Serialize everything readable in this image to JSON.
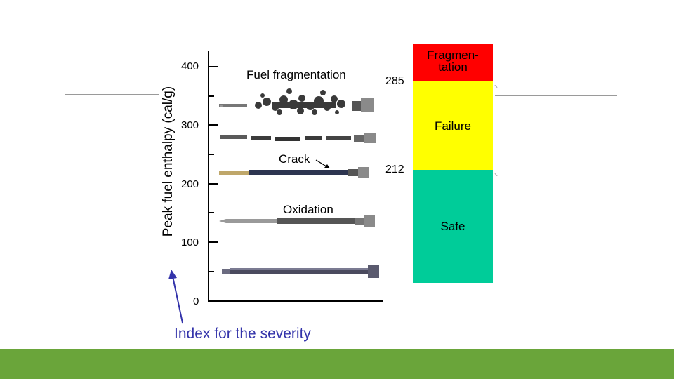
{
  "slide": {
    "axis_title": "Peak fuel enthalpy (cal/g)",
    "ticks": [
      "400",
      "300",
      "200",
      "100",
      "0"
    ],
    "labels": {
      "fragmentation": "Fuel fragmentation",
      "crack": "Crack",
      "oxidation": "Oxidation"
    },
    "severity_label": "Index for the severity",
    "thresholds": {
      "upper": "285",
      "lower": "212"
    },
    "bands": {
      "fragmentation": "Fragmen-\ntation",
      "failure": "Failure",
      "safe": "Safe"
    },
    "colors": {
      "fragmentation": "#ff0000",
      "failure": "#ffff00",
      "safe": "#00cc99",
      "footer": "#6aa53a",
      "arrow": "#3333aa"
    }
  }
}
